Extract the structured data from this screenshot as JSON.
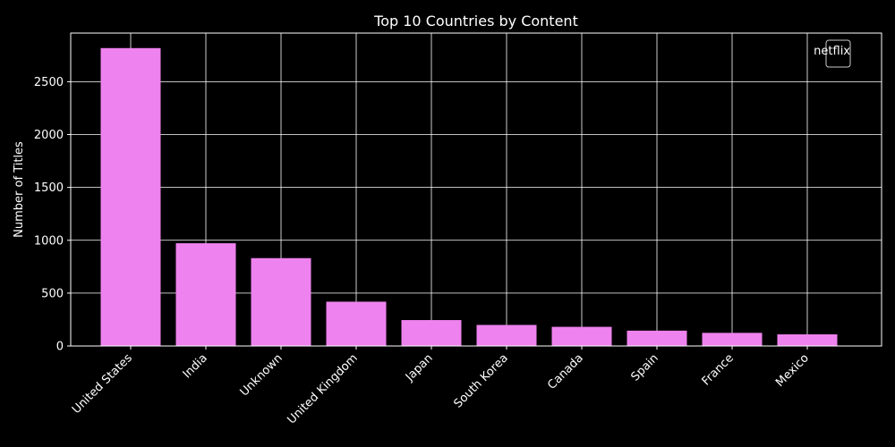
{
  "chart_data": {
    "type": "bar",
    "title": "Top 10 Countries by Content",
    "xlabel": "",
    "ylabel": "Number of Titles",
    "categories": [
      "United States",
      "India",
      "Unknown",
      "United Kingdom",
      "Japan",
      "South Korea",
      "Canada",
      "Spain",
      "France",
      "Mexico"
    ],
    "series": [
      {
        "name": "netflix",
        "values": [
          2818,
          972,
          831,
          419,
          245,
          199,
          181,
          145,
          124,
          110
        ],
        "color": "#ee82ee"
      }
    ],
    "yticks": [
      0,
      500,
      1000,
      1500,
      2000,
      2500
    ],
    "ylim": [
      0,
      2960
    ],
    "grid": true,
    "legend": "top-right",
    "background": "#000000",
    "foreground": "#ffffff"
  }
}
